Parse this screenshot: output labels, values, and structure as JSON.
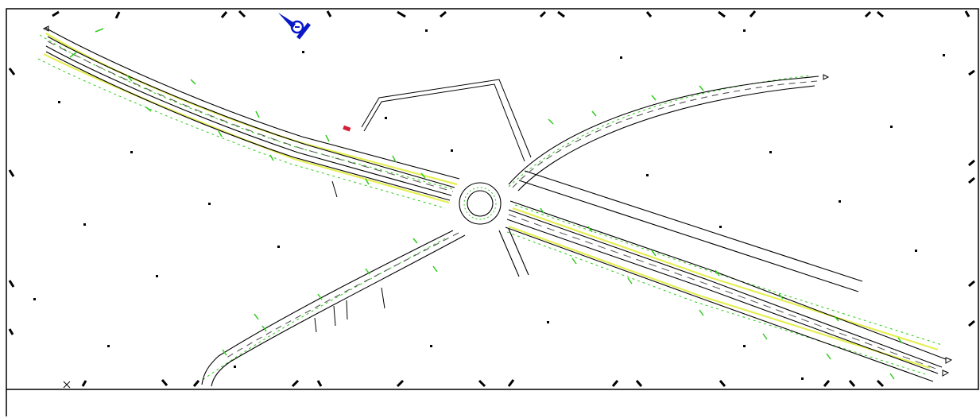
{
  "drawing": {
    "kind": "CAD road intersection layout",
    "sheet_background": "#ffffff",
    "colors": {
      "frame": "#000000",
      "road_edge": "#000000",
      "road_lane": "#3a3a3a",
      "shoulder_line": "#e6ef55",
      "vegetation": "#2ecc1a",
      "north_marker": "#0a18c8",
      "red_mark": "#d4203a",
      "tick": "#000000"
    },
    "icons": [
      "north-arrow-icon",
      "roundabout-icon"
    ],
    "visible_text": []
  }
}
